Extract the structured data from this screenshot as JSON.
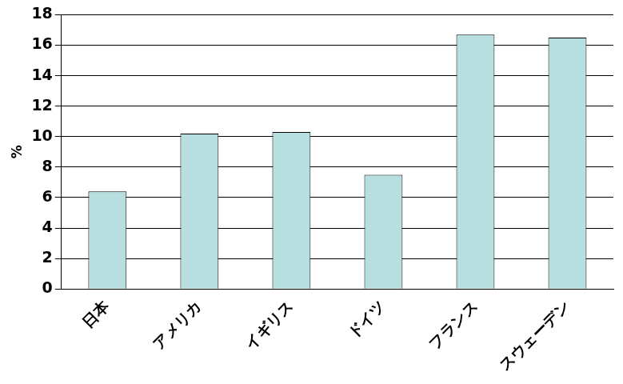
{
  "chart_data": {
    "type": "bar",
    "y_label": "%",
    "categories": [
      "日本",
      "アメリカ",
      "イギリス",
      "ドイツ",
      "フランス",
      "スウェーデン"
    ],
    "values": [
      6.4,
      10.2,
      10.3,
      7.5,
      16.7,
      16.5
    ],
    "color": "#b7dfe0",
    "ylim": [
      0,
      18
    ],
    "yticks": [
      0,
      2,
      4,
      6,
      8,
      10,
      12,
      14,
      16,
      18
    ],
    "grid": true
  }
}
